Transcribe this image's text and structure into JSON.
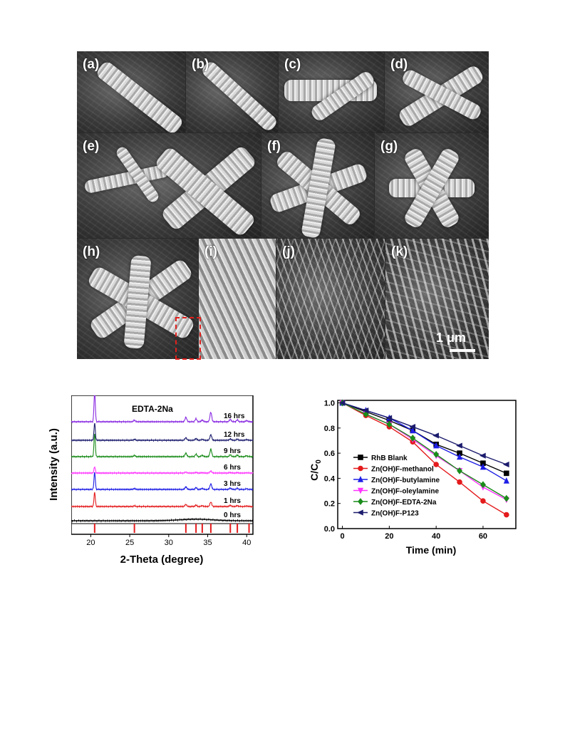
{
  "sem": {
    "panels": [
      "(a)",
      "(b)",
      "(c)",
      "(d)",
      "(e)",
      "(f)",
      "(g)",
      "(h)",
      "(i)",
      "(j)",
      "(k)"
    ],
    "scale_bar": "1 μm"
  },
  "chart_data": [
    {
      "type": "line",
      "annotation": "EDTA-2Na",
      "xlabel": "2-Theta (degree)",
      "ylabel": "Intensity (a.u.)",
      "xlim": [
        17.5,
        40.8
      ],
      "xticks": [
        20,
        25,
        30,
        35,
        40
      ],
      "y_ticks_shown": false,
      "series": [
        {
          "name": "0 hrs",
          "color": "#000000"
        },
        {
          "name": "1 hrs",
          "color": "#e41a1c"
        },
        {
          "name": "3 hrs",
          "color": "#1f1fe6"
        },
        {
          "name": "6 hrs",
          "color": "#ff33ff"
        },
        {
          "name": "9 hrs",
          "color": "#1a8c1a"
        },
        {
          "name": "12 hrs",
          "color": "#1c1c6e"
        },
        {
          "name": "16 hrs",
          "color": "#8a2be2"
        }
      ],
      "peaks": [
        {
          "x": 20.5,
          "h": 1.0
        },
        {
          "x": 25.6,
          "h": 0.05
        },
        {
          "x": 32.2,
          "h": 0.15
        },
        {
          "x": 33.5,
          "h": 0.1
        },
        {
          "x": 34.3,
          "h": 0.06
        },
        {
          "x": 35.4,
          "h": 0.32
        },
        {
          "x": 37.9,
          "h": 0.08
        },
        {
          "x": 38.8,
          "h": 0.06
        },
        {
          "x": 40.0,
          "h": 0.04
        }
      ],
      "series_scale": [
        0.0,
        0.45,
        0.55,
        0.2,
        0.75,
        0.55,
        0.95
      ],
      "reference_lines": [
        20.5,
        25.6,
        32.2,
        33.5,
        34.3,
        35.4,
        37.9,
        38.8,
        40.3
      ],
      "reference_color": "#e41a1c"
    },
    {
      "type": "line",
      "xlabel": "Time (min)",
      "ylabel": "C/C0",
      "ylabel_main": "C/C",
      "ylabel_sub": "0",
      "xlim": [
        -2,
        74
      ],
      "ylim": [
        0.0,
        1.02
      ],
      "xticks": [
        0,
        20,
        40,
        60
      ],
      "yticks": [
        0.0,
        0.2,
        0.4,
        0.6,
        0.8,
        1.0
      ],
      "x": [
        0,
        10,
        20,
        30,
        40,
        50,
        60,
        70
      ],
      "legend_position": "bottom-left",
      "series": [
        {
          "name": "RhB Blank",
          "color": "#000000",
          "marker": "square",
          "values": [
            1.0,
            0.93,
            0.86,
            0.78,
            0.67,
            0.6,
            0.52,
            0.44
          ]
        },
        {
          "name": "Zn(OH)F-methanol",
          "color": "#e41a1c",
          "marker": "circle",
          "values": [
            1.0,
            0.9,
            0.81,
            0.69,
            0.51,
            0.37,
            0.22,
            0.11
          ]
        },
        {
          "name": "Zn(OH)F-butylamine",
          "color": "#1f1fe6",
          "marker": "triangle-up",
          "values": [
            1.0,
            0.94,
            0.88,
            0.78,
            0.66,
            0.57,
            0.49,
            0.38
          ]
        },
        {
          "name": "Zn(OH)F-oleylamine",
          "color": "#ff33ff",
          "marker": "triangle-down",
          "values": [
            1.0,
            0.91,
            0.83,
            0.71,
            0.58,
            0.46,
            0.33,
            0.23
          ]
        },
        {
          "name": "Zn(OH)F-EDTA-2Na",
          "color": "#1a8c1a",
          "marker": "diamond",
          "values": [
            1.0,
            0.91,
            0.83,
            0.72,
            0.59,
            0.46,
            0.35,
            0.24
          ]
        },
        {
          "name": "Zn(OH)F-P123",
          "color": "#1c1c6e",
          "marker": "triangle-left",
          "values": [
            1.0,
            0.94,
            0.88,
            0.81,
            0.74,
            0.66,
            0.58,
            0.51
          ]
        }
      ]
    }
  ]
}
